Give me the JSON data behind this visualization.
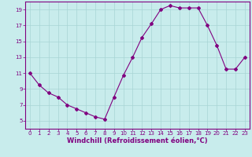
{
  "hours": [
    0,
    1,
    2,
    3,
    4,
    5,
    6,
    7,
    8,
    9,
    10,
    11,
    12,
    13,
    14,
    15,
    16,
    17,
    18,
    19,
    20,
    21,
    22,
    23
  ],
  "values": [
    11,
    9.5,
    8.5,
    8,
    7,
    6.5,
    6,
    5.5,
    5.2,
    8,
    10.7,
    13,
    15.5,
    17.2,
    19,
    19.5,
    19.2,
    19.2,
    19.2,
    17,
    14.5,
    11.5,
    11.5,
    13
  ],
  "line_color": "#800080",
  "marker": "D",
  "marker_size": 2,
  "bg_color": "#c8ecec",
  "grid_color": "#a8d4d4",
  "xlabel": "Windchill (Refroidissement éolien,°C)",
  "xlabel_color": "#800080",
  "tick_color": "#800080",
  "ylim": [
    4,
    20
  ],
  "xlim": [
    -0.5,
    23.5
  ],
  "yticks": [
    5,
    7,
    9,
    11,
    13,
    15,
    17,
    19
  ],
  "xticks": [
    0,
    1,
    2,
    3,
    4,
    5,
    6,
    7,
    8,
    9,
    10,
    11,
    12,
    13,
    14,
    15,
    16,
    17,
    18,
    19,
    20,
    21,
    22,
    23
  ],
  "spine_color": "#800080",
  "tick_fontsize": 5.0,
  "xlabel_fontsize": 6.0
}
